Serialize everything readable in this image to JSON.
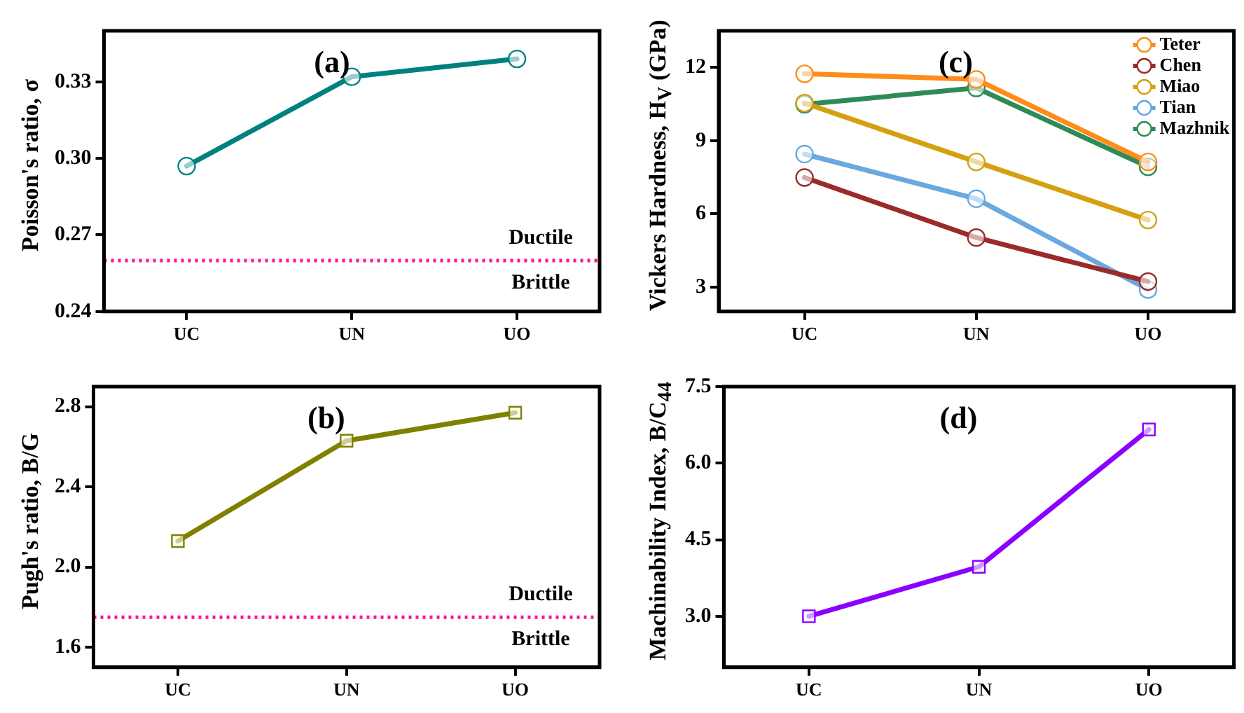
{
  "chart_data": [
    {
      "type": "line",
      "categories": [
        "UC",
        "UN",
        "UO"
      ],
      "ylabel": "Poisson's ratio, σ",
      "ylim": [
        0.24,
        0.35
      ],
      "yticks": [
        0.24,
        0.27,
        {
          "value": 0.3,
          "label": "0.30"
        },
        0.33
      ],
      "grid": false,
      "marker": "circle",
      "legend": false,
      "series": [
        {
          "color": "#008080",
          "values": [
            0.297,
            0.332,
            0.339
          ]
        }
      ],
      "ref_lines": [
        {
          "axis": "y",
          "value": 0.26,
          "color": "#ff1493",
          "line_style": "dotted"
        }
      ],
      "annotations": [
        "(a)",
        "Ductile",
        "Brittle"
      ]
    },
    {
      "type": "line",
      "categories": [
        "UC",
        "UN",
        "UO"
      ],
      "ylabel": "Pugh's ratio, B/G",
      "ylim": [
        1.5,
        2.9
      ],
      "yticks": [
        1.6,
        {
          "value": 2,
          "label": "2.0"
        },
        2.4,
        2.8
      ],
      "grid": false,
      "marker": "square",
      "legend": false,
      "series": [
        {
          "color": "#808000",
          "values": [
            2.13,
            2.63,
            2.77
          ]
        }
      ],
      "ref_lines": [
        {
          "axis": "y",
          "value": 1.75,
          "color": "#ff1493",
          "line_style": "dotted"
        }
      ],
      "annotations": [
        "(b)",
        "Ductile",
        "Brittle"
      ]
    },
    {
      "type": "line",
      "categories": [
        "UC",
        "UN",
        "UO"
      ],
      "ylabel": "Vickers Hardness, H$_{V}$ (GPa)",
      "ylim": [
        2,
        13.5
      ],
      "yticks": [
        3,
        6,
        9,
        12
      ],
      "grid": false,
      "marker": "circle",
      "legend": "top right",
      "series": [
        {
          "name": "Teter",
          "color": "#ff8c1a",
          "values": [
            11.74,
            11.51,
            8.13
          ]
        },
        {
          "name": "Chen",
          "color": "#9b2a2a",
          "values": [
            7.49,
            5.03,
            3.23
          ]
        },
        {
          "name": "Miao",
          "color": "#d4a010",
          "values": [
            10.54,
            8.13,
            5.75
          ]
        },
        {
          "name": "Tian",
          "color": "#6aa8e0",
          "values": [
            8.45,
            6.62,
            2.9
          ]
        },
        {
          "name": "Mazhnik",
          "color": "#2e8b57",
          "values": [
            10.49,
            11.16,
            7.93
          ]
        }
      ],
      "annotations": [
        "(c)"
      ]
    },
    {
      "type": "line",
      "categories": [
        "UC",
        "UN",
        "UO"
      ],
      "ylabel": "Machinability Index, B/C$_{44}$",
      "ylim": [
        2,
        7.5
      ],
      "yticks": [
        {
          "value": 3,
          "label": "3.0"
        },
        4.5,
        {
          "value": 6,
          "label": "6.0"
        },
        7.5
      ],
      "grid": false,
      "marker": "square",
      "legend": false,
      "series": [
        {
          "color": "#8b00ff",
          "values": [
            3.0,
            3.97,
            6.66
          ]
        }
      ],
      "annotations": [
        "(d)"
      ]
    }
  ]
}
